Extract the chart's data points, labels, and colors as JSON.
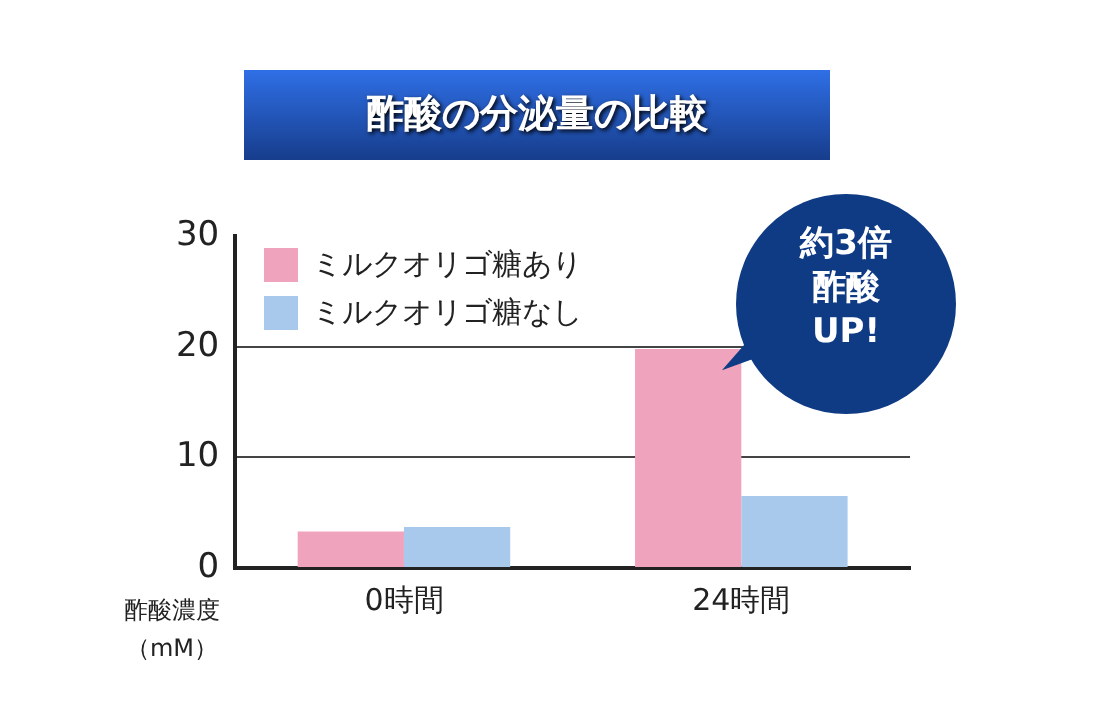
{
  "chart_data": {
    "type": "bar",
    "title": "酢酸の分泌量の比較",
    "ylabel": "酢酸濃度（mM）",
    "categories": [
      "0時間",
      "24時間"
    ],
    "series": [
      {
        "name": "ミルクオリゴ糖あり",
        "color": "#f0a3bc",
        "values": [
          3.3,
          19.8
        ]
      },
      {
        "name": "ミルクオリゴ糖なし",
        "color": "#a9c9ec",
        "values": [
          3.7,
          6.5
        ]
      }
    ],
    "ylim": [
      0,
      30
    ],
    "yticks": [
      0,
      10,
      20,
      30
    ],
    "grid": "y",
    "legend": "top left",
    "annotations": [
      "約3倍酢酸UP!"
    ]
  }
}
